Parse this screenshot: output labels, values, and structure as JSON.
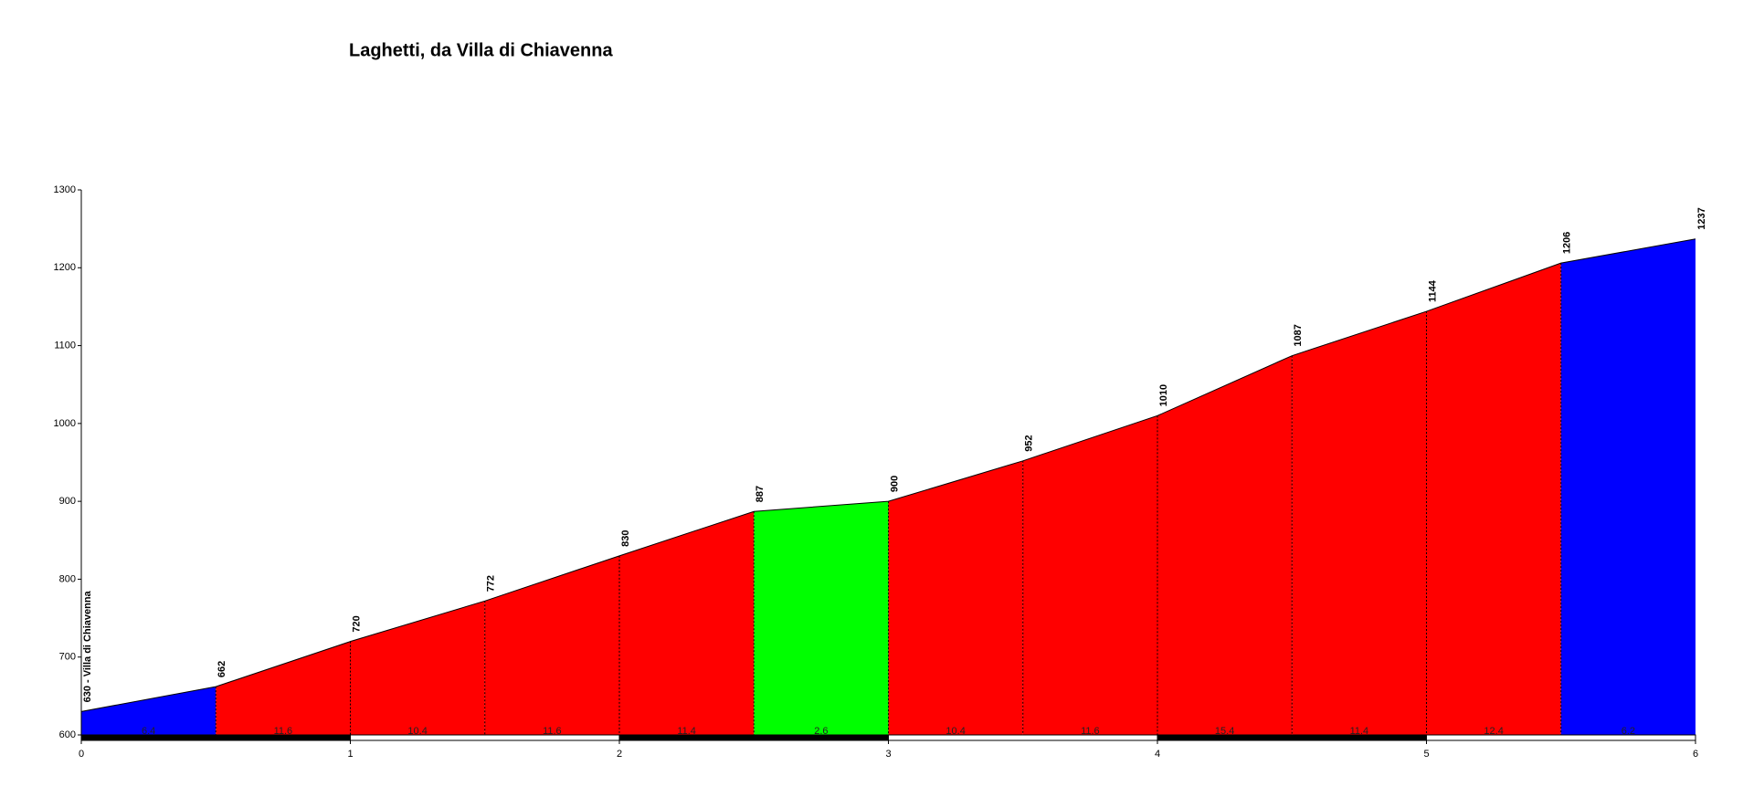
{
  "chart_data": {
    "type": "area",
    "title": "Laghetti, da Villa di Chiavenna",
    "x": [
      0,
      0.5,
      1,
      1.5,
      2,
      2.5,
      3,
      3.5,
      4,
      4.5,
      5,
      5.5,
      6
    ],
    "values": [
      630,
      662,
      720,
      772,
      830,
      887,
      900,
      952,
      1010,
      1087,
      1144,
      1206,
      1237
    ],
    "value_labels": [
      "630 - Villa di Chiavenna",
      "662",
      "720",
      "772",
      "830",
      "887",
      "900",
      "952",
      "1010",
      "1087",
      "1144",
      "1206",
      "1237"
    ],
    "segments": {
      "values": [
        6.4,
        11.6,
        10.4,
        11.6,
        11.4,
        2.6,
        10.4,
        11.6,
        15.4,
        11.4,
        12.4,
        6.2
      ],
      "colors": [
        "#0000ff",
        "#ff0000",
        "#ff0000",
        "#ff0000",
        "#ff0000",
        "#00ff00",
        "#ff0000",
        "#ff0000",
        "#ff0000",
        "#ff0000",
        "#ff0000",
        "#0000ff"
      ]
    },
    "xlim": [
      0,
      6
    ],
    "xticks": [
      0,
      1,
      2,
      3,
      4,
      5,
      6
    ],
    "ylim": [
      600,
      1300
    ],
    "yticks": [
      600,
      700,
      800,
      900,
      1000,
      1100,
      1200,
      1300
    ]
  }
}
